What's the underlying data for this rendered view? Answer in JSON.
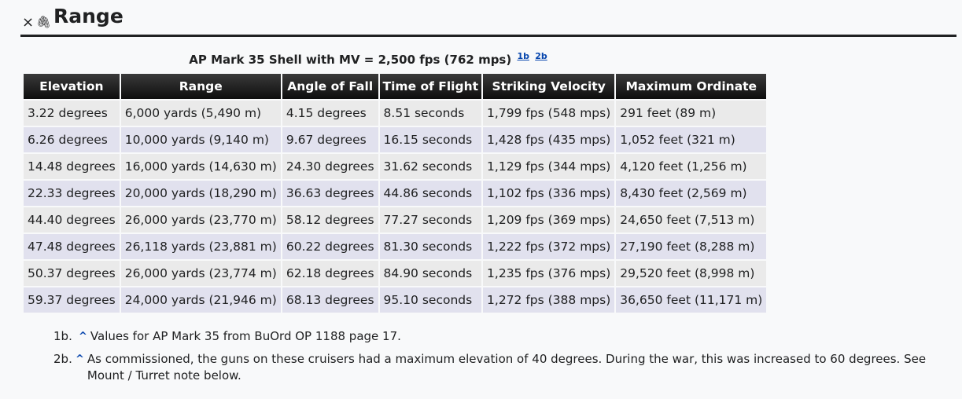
{
  "section": {
    "title": "Range",
    "close_icon": "×",
    "link_icon": "🔗"
  },
  "caption": {
    "text": "AP Mark 35 Shell with MV = 2,500 fps (762 mps)",
    "refs": [
      "1b",
      "2b"
    ]
  },
  "table": {
    "headers": [
      "Elevation",
      "Range",
      "Angle of Fall",
      "Time of Flight",
      "Striking Velocity",
      "Maximum Ordinate"
    ],
    "rows": [
      [
        "3.22 degrees",
        "6,000 yards (5,490 m)",
        "4.15 degrees",
        "8.51 seconds",
        "1,799 fps (548 mps)",
        "291 feet (89 m)"
      ],
      [
        "6.26 degrees",
        "10,000 yards (9,140 m)",
        "9.67 degrees",
        "16.15 seconds",
        "1,428 fps (435 mps)",
        "1,052 feet (321 m)"
      ],
      [
        "14.48 degrees",
        "16,000 yards (14,630 m)",
        "24.30 degrees",
        "31.62 seconds",
        "1,129 fps (344 mps)",
        "4,120 feet (1,256 m)"
      ],
      [
        "22.33 degrees",
        "20,000 yards (18,290 m)",
        "36.63 degrees",
        "44.86 seconds",
        "1,102 fps (336 mps)",
        "8,430 feet (2,569 m)"
      ],
      [
        "44.40 degrees",
        "26,000 yards (23,770 m)",
        "58.12 degrees",
        "77.27 seconds",
        "1,209 fps (369 mps)",
        "24,650 feet (7,513 m)"
      ],
      [
        "47.48 degrees",
        "26,118 yards (23,881 m)",
        "60.22 degrees",
        "81.30 seconds",
        "1,222 fps (372 mps)",
        "27,190 feet (8,288 m)"
      ],
      [
        "50.37 degrees",
        "26,000 yards (23,774 m)",
        "62.18 degrees",
        "84.90 seconds",
        "1,235 fps (376 mps)",
        "29,520 feet (8,998 m)"
      ],
      [
        "59.37 degrees",
        "24,000 yards (21,946 m)",
        "68.13 degrees",
        "95.10 seconds",
        "1,272 fps (388 mps)",
        "36,650 feet (11,171 m)"
      ]
    ]
  },
  "notes": [
    {
      "label": "1b.",
      "caret": "^",
      "text": "Values for AP Mark 35 from BuOrd OP 1188 page 17."
    },
    {
      "label": "2b.",
      "caret": "^",
      "text": "As commissioned, the guns on these cruisers had a maximum elevation of 40 degrees. During the war, this was increased to 60 degrees. See Mount / Turret note below."
    }
  ]
}
